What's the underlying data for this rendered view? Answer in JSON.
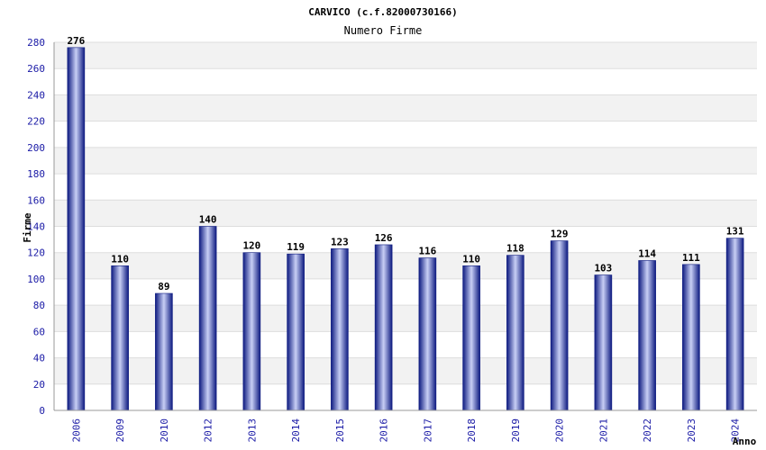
{
  "chart_data": {
    "type": "bar",
    "title": "CARVICO (c.f.82000730166)",
    "subtitle": "Numero Firme",
    "xlabel": "Anno",
    "ylabel": "Firme",
    "ylim": [
      0,
      280
    ],
    "yticks": [
      0,
      20,
      40,
      60,
      80,
      100,
      120,
      140,
      160,
      180,
      200,
      220,
      240,
      260,
      280
    ],
    "categories": [
      "2006",
      "2009",
      "2010",
      "2012",
      "2013",
      "2014",
      "2015",
      "2016",
      "2017",
      "2018",
      "2019",
      "2020",
      "2021",
      "2022",
      "2023",
      "2024"
    ],
    "values": [
      276,
      110,
      89,
      140,
      120,
      119,
      123,
      126,
      116,
      110,
      118,
      129,
      103,
      114,
      111,
      131
    ],
    "grid": true,
    "colors": {
      "bar_dark": "#0d1a80",
      "bar_light": "#c8cff5",
      "tick": "#1a1aa6",
      "band": "#f2f2f2"
    }
  }
}
